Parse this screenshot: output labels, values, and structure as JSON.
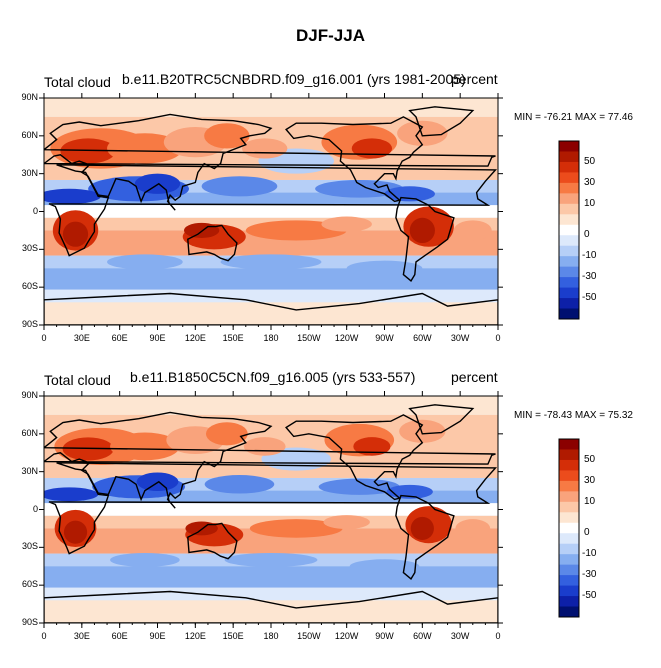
{
  "title": "DJF-JJA",
  "panels": [
    {
      "left_label": "Total cloud",
      "center_label": "b.e11.B20TRC5CNBDRD.f09_g16.001 (yrs 1981-2005)",
      "right_label": "percent",
      "minmax": "MIN = -76.21 MAX =  77.46"
    },
    {
      "left_label": "Total cloud",
      "center_label": "b.e11.B1850C5CN.f09_g16.005 (yrs 533-557)",
      "right_label": "percent",
      "minmax": "MIN = -78.43 MAX =  75.32"
    }
  ],
  "lat_labels": [
    "90N",
    "60N",
    "30N",
    "0",
    "30S",
    "60S",
    "90S"
  ],
  "lon_labels": [
    "0",
    "30E",
    "60E",
    "90E",
    "120E",
    "150E",
    "180",
    "150W",
    "120W",
    "90W",
    "60W",
    "30W",
    "0"
  ],
  "colorbar": {
    "labels": [
      "50",
      "30",
      "10",
      "0",
      "-10",
      "-30",
      "-50"
    ],
    "colors": [
      "#8b0000",
      "#b01a00",
      "#d42e08",
      "#ec4c1c",
      "#f77a44",
      "#f9a37c",
      "#fcc8a8",
      "#fde6d2",
      "#ffffff",
      "#dde9fb",
      "#b6cff7",
      "#86aef0",
      "#5b88e8",
      "#3360df",
      "#1a3dcc",
      "#0d20a8",
      "#001070"
    ]
  },
  "colors": {
    "land_outline": "#000000",
    "strong_positive": "#d42e08",
    "moderate_positive": "#f77a44",
    "weak_positive": "#fcc8a8",
    "neutral": "#ffffff",
    "weak_negative": "#b6cff7",
    "moderate_negative": "#5b88e8",
    "strong_negative": "#1a3dcc"
  }
}
